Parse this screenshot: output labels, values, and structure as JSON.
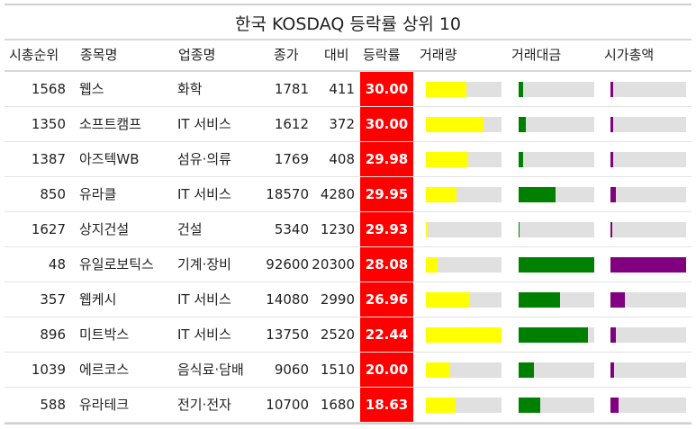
{
  "title": "한국 KOSDAQ 등락률 상위 10",
  "headers": [
    "시총순위",
    "종목명",
    "업종명",
    "종가",
    "대비",
    "등락률",
    "거래량",
    "거래대금",
    "시가총액"
  ],
  "colors": {
    "change_bg": "#ff0000",
    "volume_bar": "#ffff00",
    "value_bar": "#008000",
    "marketcap_bar": "#800080",
    "bar_track": "#e0e0e0"
  },
  "chart_data": {
    "type": "table",
    "title": "한국 KOSDAQ 등락률 상위 10",
    "columns": [
      "시총순위",
      "종목명",
      "업종명",
      "종가",
      "대비",
      "등락률",
      "거래량",
      "거래대금",
      "시가총액"
    ],
    "bar_columns_note": "거래량, 거래대금, 시가총액 are shown as bars relative to the column maximum",
    "rows": [
      {
        "rank": "1568",
        "name": "웹스",
        "sector": "화학",
        "close": "1781",
        "diff": "411",
        "pct": "30.00",
        "volume": 0.53,
        "value": 0.06,
        "mcap": 0.04
      },
      {
        "rank": "1350",
        "name": "소프트캠프",
        "sector": "IT 서비스",
        "close": "1612",
        "diff": "372",
        "pct": "30.00",
        "volume": 0.76,
        "value": 0.09,
        "mcap": 0.04
      },
      {
        "rank": "1387",
        "name": "아즈텍WB",
        "sector": "섬유·의류",
        "close": "1769",
        "diff": "408",
        "pct": "29.98",
        "volume": 0.56,
        "value": 0.06,
        "mcap": 0.04
      },
      {
        "rank": "850",
        "name": "유라클",
        "sector": "IT 서비스",
        "close": "18570",
        "diff": "4280",
        "pct": "29.95",
        "volume": 0.41,
        "value": 0.49,
        "mcap": 0.07
      },
      {
        "rank": "1627",
        "name": "상지건설",
        "sector": "건설",
        "close": "5340",
        "diff": "1230",
        "pct": "29.93",
        "volume": 0.02,
        "value": 0.01,
        "mcap": 0.02
      },
      {
        "rank": "48",
        "name": "유일로보틱스",
        "sector": "기계·장비",
        "close": "92600",
        "diff": "20300",
        "pct": "28.08",
        "volume": 0.16,
        "value": 1.0,
        "mcap": 1.0
      },
      {
        "rank": "357",
        "name": "웹케시",
        "sector": "IT 서비스",
        "close": "14080",
        "diff": "2990",
        "pct": "26.96",
        "volume": 0.58,
        "value": 0.55,
        "mcap": 0.19
      },
      {
        "rank": "896",
        "name": "미트박스",
        "sector": "IT 서비스",
        "close": "13750",
        "diff": "2520",
        "pct": "22.44",
        "volume": 1.0,
        "value": 0.92,
        "mcap": 0.07
      },
      {
        "rank": "1039",
        "name": "에르코스",
        "sector": "음식료·담배",
        "close": "9060",
        "diff": "1510",
        "pct": "20.00",
        "volume": 0.32,
        "value": 0.2,
        "mcap": 0.05
      },
      {
        "rank": "588",
        "name": "유라테크",
        "sector": "전기·전자",
        "close": "10700",
        "diff": "1680",
        "pct": "18.63",
        "volume": 0.39,
        "value": 0.28,
        "mcap": 0.11
      }
    ]
  }
}
